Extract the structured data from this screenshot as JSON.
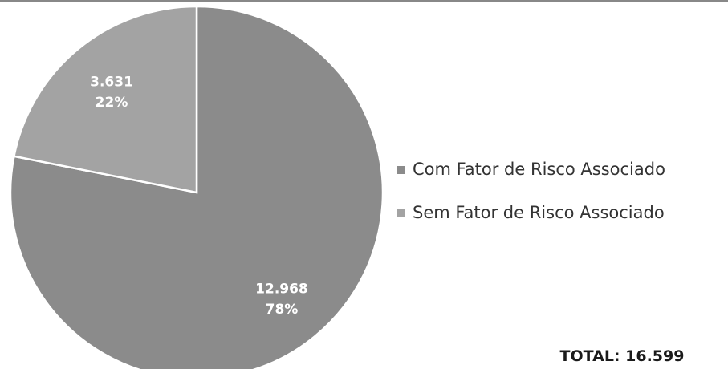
{
  "chart_data": {
    "type": "pie",
    "categories": [
      "Com Fator de Risco Associado",
      "Sem Fator de Risco Associado"
    ],
    "values": [
      12968,
      3631
    ],
    "value_labels": [
      "12.968",
      "3.631"
    ],
    "percent_labels": [
      "78%",
      "22%"
    ],
    "colors": [
      "#8b8b8b",
      "#a3a3a3"
    ],
    "legend": "right",
    "total_label": "TOTAL: 16.599"
  }
}
